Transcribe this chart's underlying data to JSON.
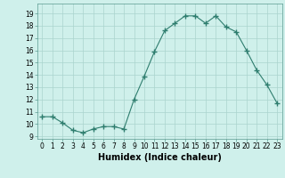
{
  "x": [
    0,
    1,
    2,
    3,
    4,
    5,
    6,
    7,
    8,
    9,
    10,
    11,
    12,
    13,
    14,
    15,
    16,
    17,
    18,
    19,
    20,
    21,
    22,
    23
  ],
  "y": [
    10.6,
    10.6,
    10.1,
    9.5,
    9.3,
    9.6,
    9.8,
    9.8,
    9.6,
    12.0,
    13.9,
    15.9,
    17.6,
    18.2,
    18.8,
    18.8,
    18.2,
    18.8,
    17.9,
    17.5,
    16.0,
    14.4,
    13.2,
    11.7
  ],
  "line_color": "#2e7d6e",
  "marker": "+",
  "marker_size": 4,
  "line_width": 0.8,
  "bg_color": "#cff0eb",
  "grid_color_major": "#aad4ce",
  "grid_color_minor": "#bce0da",
  "xlabel": "Humidex (Indice chaleur)",
  "xlabel_fontsize": 7,
  "ytick_labels": [
    9,
    10,
    11,
    12,
    13,
    14,
    15,
    16,
    17,
    18,
    19
  ],
  "ylim": [
    8.8,
    19.8
  ],
  "xlim": [
    -0.5,
    23.5
  ],
  "xtick_labels": [
    "0",
    "1",
    "2",
    "3",
    "4",
    "5",
    "6",
    "7",
    "8",
    "9",
    "10",
    "11",
    "12",
    "13",
    "14",
    "15",
    "16",
    "17",
    "18",
    "19",
    "20",
    "21",
    "22",
    "23"
  ],
  "tick_fontsize": 5.5
}
